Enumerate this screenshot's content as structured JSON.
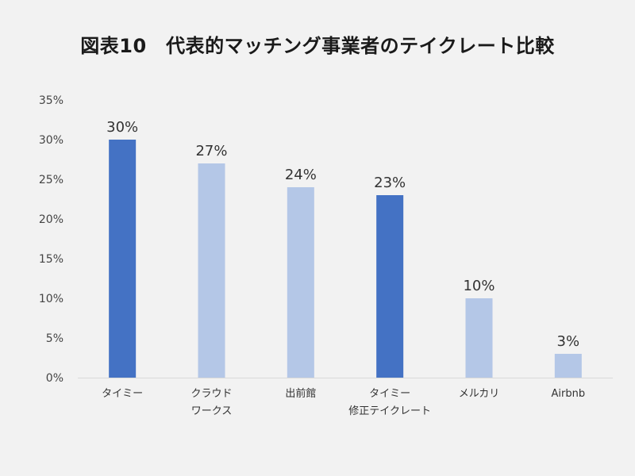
{
  "title": "図表10　代表的マッチング事業者のテイクレート比較",
  "colors": {
    "highlight": "#4472c4",
    "normal": "#b4c7e7",
    "axis": "#d9d9d9",
    "background": "#f2f2f2"
  },
  "chart_data": {
    "type": "bar",
    "title": "図表10　代表的マッチング事業者のテイクレート比較",
    "categories": [
      [
        "タイミー"
      ],
      [
        "クラウド",
        "ワークス"
      ],
      [
        "出前館"
      ],
      [
        "タイミー",
        "修正テイクレート"
      ],
      [
        "メルカリ"
      ],
      [
        "Airbnb"
      ]
    ],
    "values": [
      30,
      27,
      24,
      23,
      10,
      3
    ],
    "data_labels": [
      "30%",
      "27%",
      "24%",
      "23%",
      "10%",
      "3%"
    ],
    "highlighted": [
      true,
      false,
      false,
      true,
      false,
      false
    ],
    "ylim": [
      0,
      35
    ],
    "yticks": [
      "0%",
      "5%",
      "10%",
      "15%",
      "20%",
      "25%",
      "30%",
      "35%"
    ],
    "ytick_values": [
      0,
      5,
      10,
      15,
      20,
      25,
      30,
      35
    ],
    "grid": false,
    "legend": "none",
    "xlabel": "",
    "ylabel": ""
  }
}
